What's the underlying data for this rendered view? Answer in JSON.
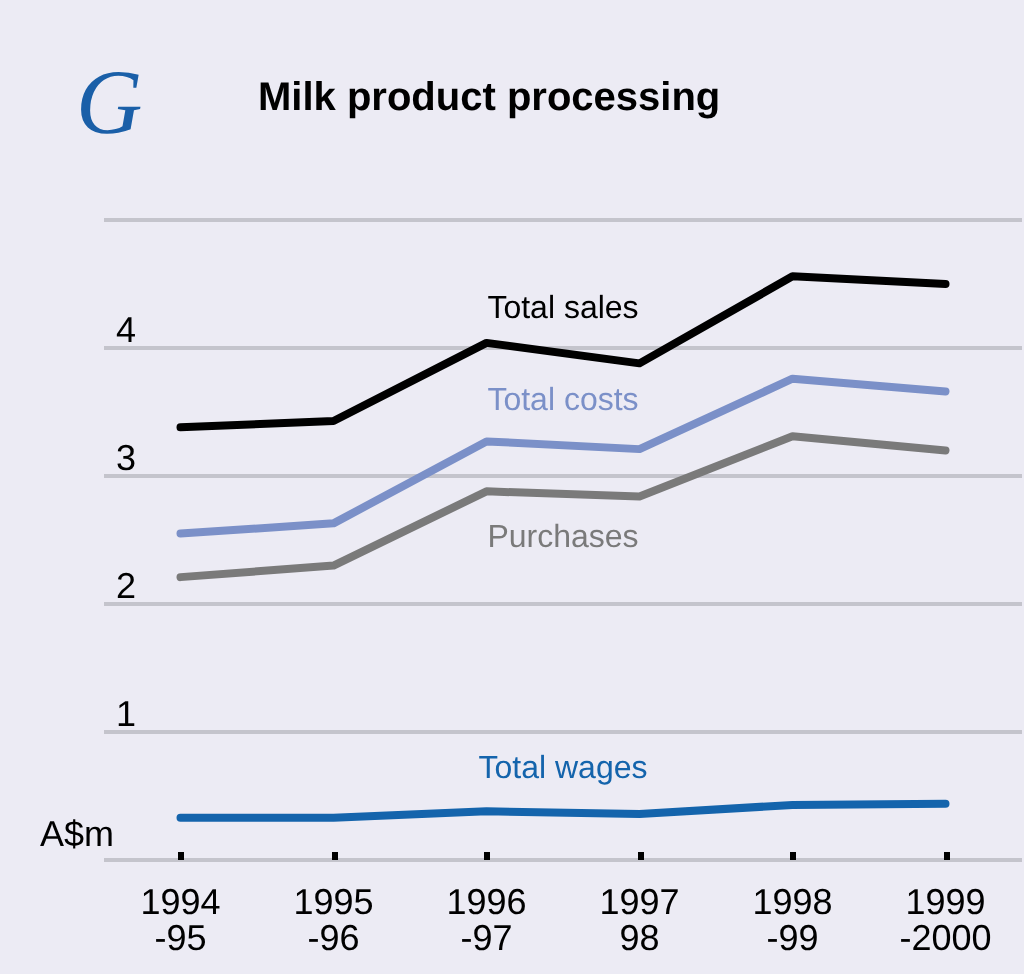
{
  "chart_data": {
    "type": "line",
    "title": "Milk product processing",
    "annotations": [
      "G"
    ],
    "ylabel": "A$m",
    "categories": [
      "1994\n-95",
      "1995\n-96",
      "1996\n-97",
      "1997\n98",
      "1998\n-99",
      "1999\n-2000"
    ],
    "series": [
      {
        "name": "Total sales",
        "color": "#000000",
        "values": [
          3.38,
          3.43,
          4.04,
          3.88,
          4.56,
          4.5
        ]
      },
      {
        "name": "Total costs",
        "color": "#7b90c8",
        "values": [
          2.55,
          2.63,
          3.27,
          3.21,
          3.76,
          3.66
        ]
      },
      {
        "name": "Purchases",
        "color": "#7a7a7a",
        "values": [
          2.21,
          2.3,
          2.88,
          2.84,
          3.31,
          3.2
        ]
      },
      {
        "name": "Total wages",
        "color": "#1464ac",
        "values": [
          0.33,
          0.33,
          0.38,
          0.36,
          0.43,
          0.44
        ]
      }
    ],
    "ylim": [
      0,
      5
    ],
    "yticks": [
      {
        "value": 0,
        "label": null
      },
      1,
      2,
      3,
      4,
      {
        "value": 5,
        "label": null
      }
    ],
    "grid": "y",
    "legend": false,
    "marker": "none",
    "line_style": "solid"
  }
}
